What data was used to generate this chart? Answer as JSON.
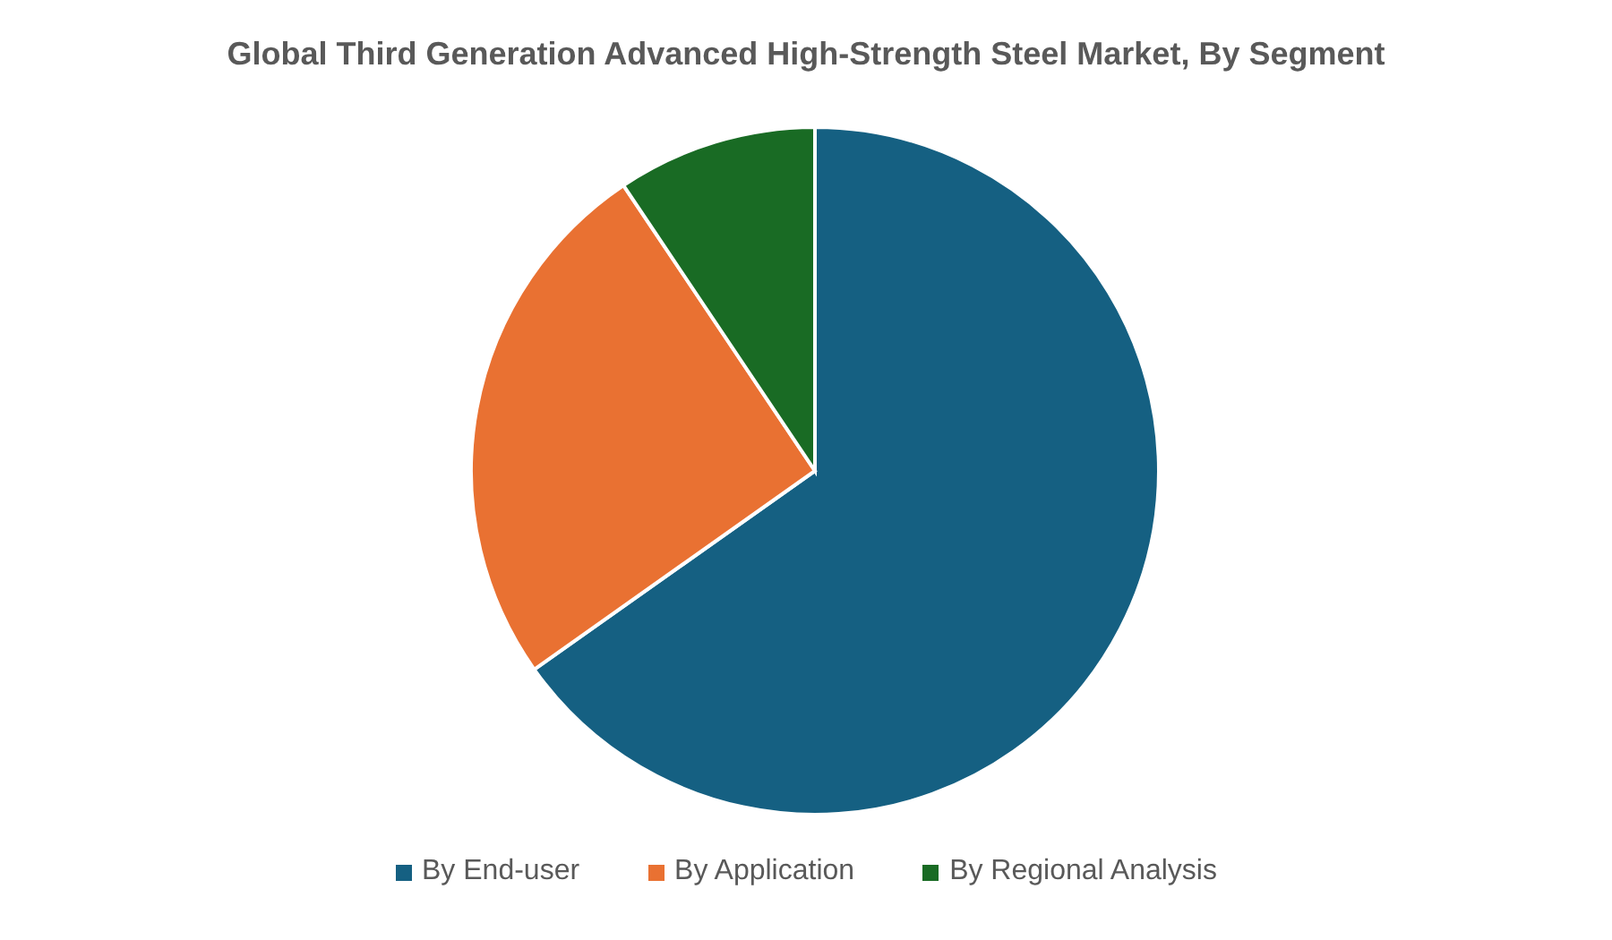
{
  "chart_data": {
    "type": "pie",
    "title": "Global Third Generation Advanced High-Strength Steel Market, By Segment",
    "categories": [
      "By End-user",
      "By Application",
      "By Regional Analysis"
    ],
    "values": [
      65.2,
      25.4,
      9.4
    ],
    "colors": [
      "#156082",
      "#e97132",
      "#196b24"
    ],
    "legend": "bottom"
  }
}
